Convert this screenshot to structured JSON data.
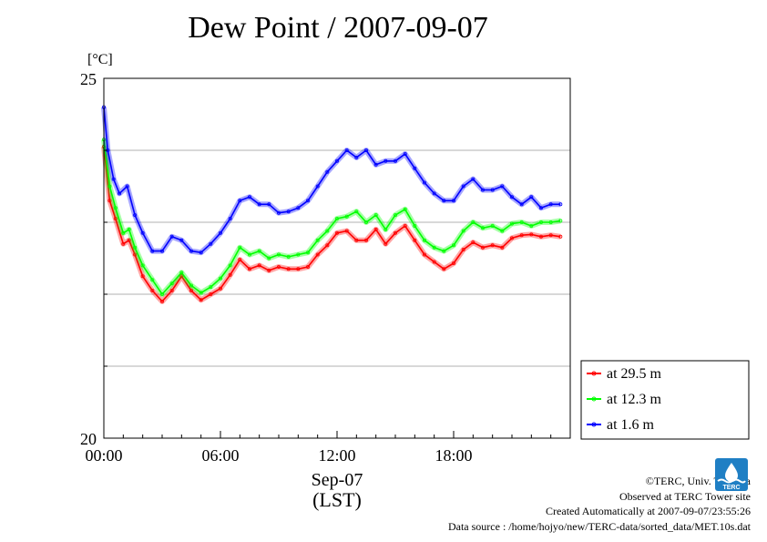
{
  "title": "Dew Point / 2007-09-07",
  "y_unit_label": "[°C]",
  "x_date_label": "Sep-07",
  "x_tz_label": "(LST)",
  "credits": {
    "copyright": "©TERC, Univ. Tsukuba",
    "observed": "Observed at TERC Tower site",
    "created": "Created Automatically at 2007-09-07/23:55:26",
    "source": "Data source : /home/hojyo/new/TERC-data/sorted_data/MET.10s.dat"
  },
  "logo": {
    "name": "TERC logo",
    "text": "TERC",
    "color": "#1f7fc4"
  },
  "chart_data": {
    "type": "line",
    "title": "Dew Point / 2007-09-07",
    "ylabel": "[°C]",
    "xlabel": "Sep-07 (LST)",
    "x_unit": "hour of day",
    "xlim": [
      0,
      24
    ],
    "ylim": [
      20,
      25
    ],
    "y_ticks": [
      20,
      25
    ],
    "y_minor_gridlines": [
      21,
      22,
      23,
      24
    ],
    "x_ticks": [
      {
        "value": 0,
        "label": "00:00"
      },
      {
        "value": 6,
        "label": "06:00"
      },
      {
        "value": 12,
        "label": "12:00"
      },
      {
        "value": 18,
        "label": "18:00"
      }
    ],
    "grid": true,
    "legend_position": "outside-right-bottom",
    "series": [
      {
        "name": "at 29.5 m",
        "color": "#ff0000",
        "x": [
          0,
          0.3,
          0.6,
          1,
          1.3,
          1.6,
          2,
          2.5,
          3,
          3.5,
          4,
          4.5,
          5,
          5.5,
          6,
          6.5,
          7,
          7.5,
          8,
          8.5,
          9,
          9.5,
          10,
          10.5,
          11,
          11.5,
          12,
          12.5,
          13,
          13.5,
          14,
          14.5,
          15,
          15.5,
          16,
          16.5,
          17,
          17.5,
          18,
          18.5,
          19,
          19.5,
          20,
          20.5,
          21,
          21.5,
          22,
          22.5,
          23,
          23.5
        ],
        "y": [
          24.05,
          23.3,
          23.05,
          22.7,
          22.75,
          22.55,
          22.25,
          22.05,
          21.9,
          22.05,
          22.25,
          22.05,
          21.92,
          22.0,
          22.08,
          22.27,
          22.48,
          22.35,
          22.4,
          22.33,
          22.38,
          22.35,
          22.35,
          22.38,
          22.55,
          22.68,
          22.85,
          22.88,
          22.75,
          22.75,
          22.9,
          22.7,
          22.85,
          22.95,
          22.75,
          22.55,
          22.45,
          22.35,
          22.43,
          22.62,
          22.72,
          22.65,
          22.68,
          22.65,
          22.78,
          22.82,
          22.83,
          22.8,
          22.82,
          22.8
        ]
      },
      {
        "name": "at 12.3 m",
        "color": "#00ff00",
        "x": [
          0,
          0.3,
          0.6,
          1,
          1.3,
          1.6,
          2,
          2.5,
          3,
          3.5,
          4,
          4.5,
          5,
          5.5,
          6,
          6.5,
          7,
          7.5,
          8,
          8.5,
          9,
          9.5,
          10,
          10.5,
          11,
          11.5,
          12,
          12.5,
          13,
          13.5,
          14,
          14.5,
          15,
          15.5,
          16,
          16.5,
          17,
          17.5,
          18,
          18.5,
          19,
          19.5,
          20,
          20.5,
          21,
          21.5,
          22,
          22.5,
          23,
          23.5
        ],
        "y": [
          24.15,
          23.5,
          23.2,
          22.85,
          22.9,
          22.65,
          22.4,
          22.2,
          22.0,
          22.15,
          22.3,
          22.12,
          22.02,
          22.1,
          22.22,
          22.4,
          22.65,
          22.55,
          22.6,
          22.5,
          22.55,
          22.52,
          22.55,
          22.58,
          22.75,
          22.88,
          23.05,
          23.08,
          23.15,
          23.0,
          23.1,
          22.9,
          23.1,
          23.18,
          22.95,
          22.75,
          22.65,
          22.6,
          22.68,
          22.88,
          23.0,
          22.92,
          22.95,
          22.88,
          22.98,
          23.0,
          22.95,
          23.0,
          23.0,
          23.02
        ]
      },
      {
        "name": "at 1.6 m",
        "color": "#0000ff",
        "x": [
          0,
          0.2,
          0.5,
          0.8,
          1.2,
          1.6,
          2,
          2.5,
          3,
          3.5,
          4,
          4.5,
          5,
          5.5,
          6,
          6.5,
          7,
          7.5,
          8,
          8.5,
          9,
          9.5,
          10,
          10.5,
          11,
          11.5,
          12,
          12.5,
          13,
          13.5,
          14,
          14.5,
          15,
          15.5,
          16,
          16.5,
          17,
          17.5,
          18,
          18.5,
          19,
          19.5,
          20,
          20.5,
          21,
          21.5,
          22,
          22.5,
          23,
          23.5
        ],
        "y": [
          24.6,
          24.0,
          23.6,
          23.4,
          23.5,
          23.1,
          22.85,
          22.6,
          22.6,
          22.8,
          22.75,
          22.6,
          22.58,
          22.7,
          22.85,
          23.05,
          23.3,
          23.35,
          23.25,
          23.25,
          23.13,
          23.15,
          23.2,
          23.3,
          23.5,
          23.7,
          23.85,
          24.0,
          23.9,
          24.0,
          23.8,
          23.85,
          23.85,
          23.95,
          23.75,
          23.55,
          23.4,
          23.3,
          23.3,
          23.5,
          23.6,
          23.45,
          23.45,
          23.5,
          23.35,
          23.25,
          23.35,
          23.2,
          23.25,
          23.25
        ]
      }
    ]
  }
}
